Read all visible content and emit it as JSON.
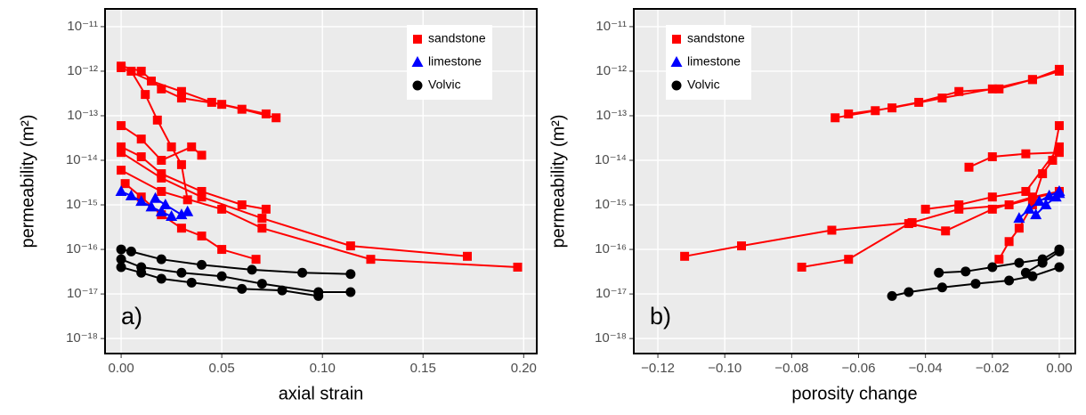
{
  "chart_data": [
    {
      "type": "line",
      "panel_label": "a)",
      "xlabel": "axial strain",
      "ylabel": "permeability (m²)",
      "yscale": "log",
      "grid": true,
      "legend": "upper right",
      "xlim": [
        -0.008,
        0.2065
      ],
      "ylim": [
        4.6e-19,
        2.5e-11
      ],
      "xticks": [
        {
          "value": 0,
          "label": "0.00"
        },
        {
          "value": 0.05,
          "label": "0.05"
        },
        {
          "value": 0.1,
          "label": "0.10"
        },
        {
          "value": 0.15,
          "label": "0.15"
        },
        {
          "value": 0.2,
          "label": "0.20"
        }
      ],
      "yticks": [
        {
          "value": 1e-11,
          "label": "10⁻¹¹"
        },
        {
          "value": 1e-12,
          "label": "10⁻¹²"
        },
        {
          "value": 1e-13,
          "label": "10⁻¹³"
        },
        {
          "value": 1e-14,
          "label": "10⁻¹⁴"
        },
        {
          "value": 1e-15,
          "label": "10⁻¹⁵"
        },
        {
          "value": 1e-16,
          "label": "10⁻¹⁶"
        },
        {
          "value": 1e-17,
          "label": "10⁻¹⁷"
        },
        {
          "value": 1e-18,
          "label": "10⁻¹⁸"
        }
      ],
      "series": [
        {
          "name": "sandstone",
          "color": "#ff0000",
          "marker": "square",
          "x": [
            0,
            0.01,
            0.02,
            0.03,
            0.05,
            0.072,
            null,
            0,
            0.015,
            0.03,
            0.045,
            0.06,
            0.077,
            null,
            0,
            0.01,
            0.02,
            0.04,
            0.06,
            0.072,
            null,
            0,
            0.02,
            0.04,
            0.07,
            0.114,
            0.172,
            null,
            0,
            0.02,
            0.05,
            0.07,
            0.124,
            0.197,
            null,
            0.005,
            0.012,
            0.018,
            0.025,
            0.03,
            0.033,
            null,
            0.002,
            0.01,
            0.02,
            0.03,
            0.04,
            0.05,
            0.067,
            null,
            0,
            0.01,
            0.02,
            0.035,
            0.04
          ],
          "values": [
            1.3e-12,
            1e-12,
            4e-13,
            2.5e-13,
            1.8e-13,
            1.1e-13,
            null,
            1.2e-12,
            6e-13,
            3.5e-13,
            2e-13,
            1.4e-13,
            9e-14,
            null,
            2e-14,
            1.2e-14,
            5e-15,
            2e-15,
            1e-15,
            8e-16,
            null,
            1.5e-14,
            4e-15,
            1.5e-15,
            5e-16,
            1.2e-16,
            7e-17,
            null,
            6e-15,
            2e-15,
            8e-16,
            3e-16,
            6e-17,
            4e-17,
            null,
            1e-12,
            3e-13,
            8e-14,
            2e-14,
            8e-15,
            1.3e-15,
            null,
            3e-15,
            1.5e-15,
            6e-16,
            3e-16,
            2e-16,
            1e-16,
            6e-17,
            null,
            6e-14,
            3e-14,
            1e-14,
            2e-14,
            1.3e-14
          ]
        },
        {
          "name": "limestone",
          "color": "#0000ff",
          "marker": "triangle",
          "x": [
            0,
            0.005,
            0.01,
            0.015,
            0.02,
            0.025,
            null,
            0.017,
            0.022,
            0.03,
            0.033
          ],
          "values": [
            2e-15,
            1.6e-15,
            1.2e-15,
            9e-16,
            7e-16,
            5.5e-16,
            null,
            1.4e-15,
            1e-15,
            6e-16,
            7e-16
          ]
        },
        {
          "name": "Volvic",
          "color": "#000000",
          "marker": "circle",
          "x": [
            0,
            0.005,
            0.02,
            0.04,
            0.065,
            0.09,
            0.114,
            null,
            0,
            0.01,
            0.03,
            0.05,
            0.07,
            0.098,
            0.114,
            null,
            0,
            0.01,
            0.02,
            0.035,
            0.06,
            0.08,
            0.098
          ],
          "values": [
            1e-16,
            9e-17,
            6e-17,
            4.5e-17,
            3.5e-17,
            3e-17,
            2.8e-17,
            null,
            6e-17,
            4e-17,
            3e-17,
            2.5e-17,
            1.7e-17,
            1.1e-17,
            1.1e-17,
            null,
            4e-17,
            3e-17,
            2.2e-17,
            1.8e-17,
            1.3e-17,
            1.2e-17,
            9e-18
          ]
        }
      ]
    },
    {
      "type": "line",
      "panel_label": "b)",
      "xlabel": "porosity change",
      "ylabel": "permeability (m²)",
      "yscale": "log",
      "grid": true,
      "legend": "upper left",
      "xlim": [
        -0.1272,
        0.0048
      ],
      "ylim": [
        4.6e-19,
        2.5e-11
      ],
      "xticks": [
        {
          "value": -0.12,
          "label": "−0.12"
        },
        {
          "value": -0.1,
          "label": "−0.10"
        },
        {
          "value": -0.08,
          "label": "−0.08"
        },
        {
          "value": -0.06,
          "label": "−0.06"
        },
        {
          "value": -0.04,
          "label": "−0.04"
        },
        {
          "value": -0.02,
          "label": "−0.02"
        },
        {
          "value": 0,
          "label": "0.00"
        }
      ],
      "yticks": [
        {
          "value": 1e-11,
          "label": "10⁻¹¹"
        },
        {
          "value": 1e-12,
          "label": "10⁻¹²"
        },
        {
          "value": 1e-13,
          "label": "10⁻¹³"
        },
        {
          "value": 1e-14,
          "label": "10⁻¹⁴"
        },
        {
          "value": 1e-15,
          "label": "10⁻¹⁵"
        },
        {
          "value": 1e-16,
          "label": "10⁻¹⁶"
        },
        {
          "value": 1e-17,
          "label": "10⁻¹⁷"
        },
        {
          "value": 1e-18,
          "label": "10⁻¹⁸"
        }
      ],
      "series": [
        {
          "name": "sandstone",
          "color": "#ff0000",
          "marker": "square",
          "x": [
            -0.067,
            -0.055,
            -0.042,
            -0.03,
            -0.018,
            -0.008,
            0,
            null,
            -0.063,
            -0.05,
            -0.035,
            -0.02,
            -0.008,
            0,
            null,
            -0.112,
            -0.095,
            -0.068,
            -0.044,
            -0.03,
            -0.015,
            0,
            null,
            -0.077,
            -0.063,
            -0.045,
            -0.034,
            -0.02,
            -0.008,
            0,
            null,
            -0.04,
            -0.03,
            -0.02,
            -0.01,
            0,
            null,
            -0.027,
            -0.02,
            -0.01,
            0,
            null,
            -0.018,
            -0.015,
            -0.012,
            -0.008,
            -0.005,
            -0.002,
            0
          ],
          "values": [
            9e-14,
            1.3e-13,
            2e-13,
            3.5e-13,
            4e-13,
            6.5e-13,
            1e-12,
            null,
            1.1e-13,
            1.5e-13,
            2.5e-13,
            4e-13,
            6.5e-13,
            1.1e-12,
            null,
            7e-17,
            1.2e-16,
            2.7e-16,
            4e-16,
            8e-16,
            1e-15,
            2e-15,
            null,
            4e-17,
            6e-17,
            3.8e-16,
            2.6e-16,
            8e-16,
            1.5e-15,
            2e-15,
            null,
            8e-16,
            1e-15,
            1.5e-15,
            2e-15,
            2e-14,
            null,
            7e-15,
            1.2e-14,
            1.4e-14,
            1.5e-14,
            null,
            6e-17,
            1.5e-16,
            3e-16,
            1e-15,
            5e-15,
            1e-14,
            6e-14
          ]
        },
        {
          "name": "limestone",
          "color": "#0000ff",
          "marker": "triangle",
          "x": [
            -0.012,
            -0.009,
            -0.006,
            -0.003,
            0,
            null,
            -0.007,
            -0.004,
            -0.001,
            0
          ],
          "values": [
            5e-16,
            8e-16,
            1.2e-15,
            1.6e-15,
            2e-15,
            null,
            6e-16,
            1e-15,
            1.5e-15,
            1.8e-15
          ]
        },
        {
          "name": "Volvic",
          "color": "#000000",
          "marker": "circle",
          "x": [
            -0.05,
            -0.045,
            -0.035,
            -0.025,
            -0.015,
            -0.008,
            0,
            null,
            -0.036,
            -0.028,
            -0.02,
            -0.012,
            -0.005,
            0,
            null,
            -0.01,
            -0.005,
            0
          ],
          "values": [
            9e-18,
            1.1e-17,
            1.4e-17,
            1.7e-17,
            2e-17,
            2.5e-17,
            4e-17,
            null,
            3e-17,
            3.2e-17,
            4e-17,
            5e-17,
            6e-17,
            1e-16,
            null,
            3e-17,
            5e-17,
            9e-17
          ]
        }
      ]
    }
  ]
}
